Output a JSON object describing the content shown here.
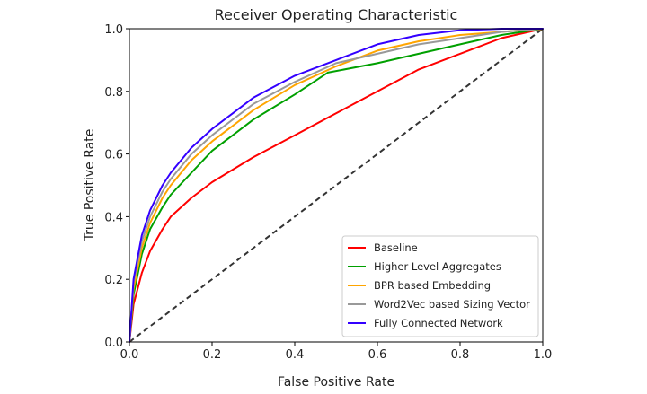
{
  "chart_data": {
    "type": "line",
    "title": "Receiver Operating Characteristic",
    "xlabel": "False Positive Rate",
    "ylabel": "True Positive Rate",
    "xlim": [
      0,
      1
    ],
    "ylim": [
      0,
      1
    ],
    "xticks": [
      "0.0",
      "0.2",
      "0.4",
      "0.6",
      "0.8",
      "1.0"
    ],
    "yticks": [
      "0.0",
      "0.2",
      "0.4",
      "0.6",
      "0.8",
      "1.0"
    ],
    "grid": false,
    "legend_position": "lower-right",
    "diagonal": {
      "x": [
        0,
        1
      ],
      "y": [
        0,
        1
      ],
      "color": "#333333",
      "style": "dashed"
    },
    "series": [
      {
        "name": "Baseline",
        "color": "#ff0000",
        "x": [
          0,
          0.01,
          0.03,
          0.05,
          0.08,
          0.1,
          0.15,
          0.2,
          0.3,
          0.4,
          0.5,
          0.6,
          0.7,
          0.8,
          0.9,
          1.0
        ],
        "y": [
          0,
          0.12,
          0.22,
          0.29,
          0.36,
          0.4,
          0.46,
          0.51,
          0.59,
          0.66,
          0.73,
          0.8,
          0.87,
          0.92,
          0.97,
          1.0
        ]
      },
      {
        "name": "Higher Level Aggregates",
        "color": "#00a000",
        "x": [
          0,
          0.01,
          0.03,
          0.05,
          0.08,
          0.1,
          0.15,
          0.2,
          0.3,
          0.4,
          0.48,
          0.6,
          0.7,
          0.8,
          0.9,
          1.0
        ],
        "y": [
          0,
          0.15,
          0.28,
          0.36,
          0.43,
          0.47,
          0.54,
          0.61,
          0.71,
          0.79,
          0.86,
          0.89,
          0.92,
          0.95,
          0.98,
          1.0
        ]
      },
      {
        "name": "BPR based Embedding",
        "color": "#ffa500",
        "x": [
          0,
          0.01,
          0.03,
          0.05,
          0.08,
          0.1,
          0.15,
          0.2,
          0.3,
          0.4,
          0.5,
          0.6,
          0.7,
          0.8,
          0.9,
          1.0
        ],
        "y": [
          0,
          0.17,
          0.3,
          0.38,
          0.46,
          0.5,
          0.58,
          0.64,
          0.74,
          0.82,
          0.88,
          0.93,
          0.96,
          0.98,
          0.99,
          1.0
        ]
      },
      {
        "name": "Word2Vec based Sizing Vector",
        "color": "#999999",
        "x": [
          0,
          0.01,
          0.03,
          0.05,
          0.08,
          0.1,
          0.15,
          0.2,
          0.3,
          0.4,
          0.5,
          0.6,
          0.7,
          0.8,
          0.9,
          1.0
        ],
        "y": [
          0,
          0.19,
          0.32,
          0.4,
          0.48,
          0.52,
          0.6,
          0.66,
          0.76,
          0.83,
          0.89,
          0.92,
          0.95,
          0.97,
          0.99,
          1.0
        ]
      },
      {
        "name": "Fully Connected Network",
        "color": "#3300ff",
        "x": [
          0,
          0.01,
          0.03,
          0.05,
          0.08,
          0.1,
          0.15,
          0.2,
          0.3,
          0.4,
          0.5,
          0.6,
          0.7,
          0.8,
          0.9,
          1.0
        ],
        "y": [
          0,
          0.2,
          0.34,
          0.42,
          0.5,
          0.54,
          0.62,
          0.68,
          0.78,
          0.85,
          0.9,
          0.95,
          0.98,
          0.995,
          1.0,
          1.0
        ]
      }
    ]
  }
}
